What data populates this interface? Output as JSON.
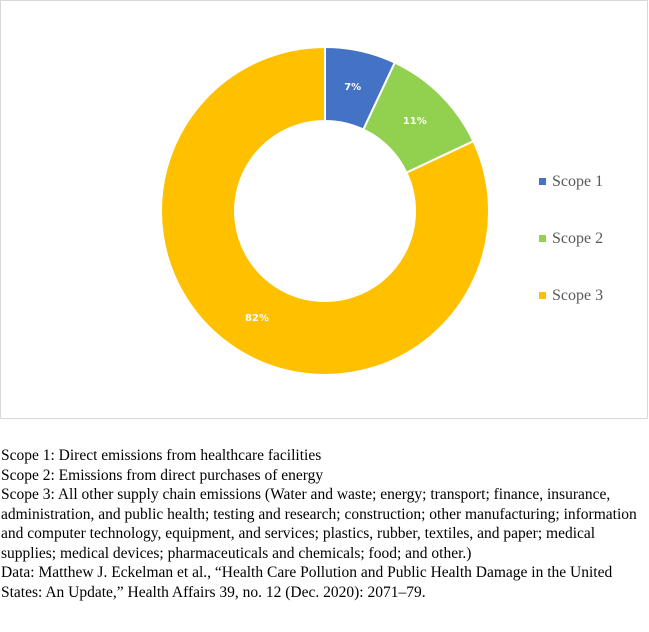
{
  "chart_data": {
    "type": "pie",
    "donut": true,
    "categories": [
      "Scope 1",
      "Scope 2",
      "Scope 3"
    ],
    "values": [
      7,
      11,
      82
    ],
    "data_labels": [
      "7%",
      "11%",
      "82%"
    ],
    "colors": [
      "#4472C4",
      "#92D050",
      "#FFC000"
    ],
    "legend_position": "right",
    "legend": [
      "Scope 1",
      "Scope 2",
      "Scope 3"
    ]
  },
  "notes": [
    "Scope 1: Direct emissions from healthcare facilities",
    "Scope 2: Emissions from direct purchases of energy",
    "Scope 3: All other supply chain emissions (Water and waste; energy; transport; finance, insurance, administration, and public health; testing and research; construction; other manufacturing; information and computer technology, equipment, and services; plastics, rubber, textiles, and paper; medical supplies; medical devices; pharmaceuticals and chemicals; food; and other.)",
    "Data: Matthew J. Eckelman et al., “Health Care Pollution and Public Health Damage in the United States: An Update,” Health Affairs 39, no. 12 (Dec. 2020): 2071–79."
  ]
}
